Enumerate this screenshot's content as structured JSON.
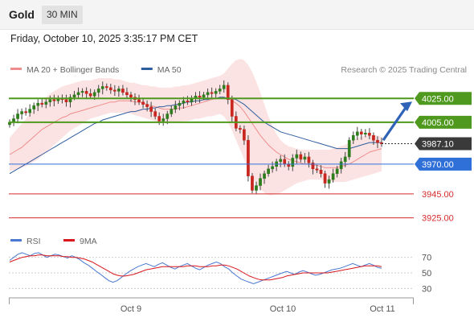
{
  "header": {
    "symbol": "Gold",
    "timeframe": "30 MIN"
  },
  "datetime": "Friday, October 10, 2025 3:35:17 PM CET",
  "credit": "Research © 2025 Trading Central",
  "chart_data": [
    {
      "type": "candlestick",
      "legend": [
        {
          "label": "MA 20 + Bollinger Bands",
          "color": "#f08c8c"
        },
        {
          "label": "MA 50",
          "color": "#2f5d9e"
        }
      ],
      "ylim": [
        3920,
        4040
      ],
      "x_tick_labels": [
        "Oct 9",
        "Oct 10",
        "Oct 11"
      ],
      "levels": [
        {
          "value": 4025,
          "label": "4025.00",
          "kind": "resistance",
          "color": "#4f9a1e"
        },
        {
          "value": 4005,
          "label": "4005.00",
          "kind": "resistance",
          "color": "#4f9a1e"
        },
        {
          "value": 3987.1,
          "label": "3987.10",
          "kind": "last price",
          "color": "#3a3a3a"
        },
        {
          "value": 3970,
          "label": "3970.00",
          "kind": "pivot",
          "color": "#2f6fd8"
        },
        {
          "value": 3945,
          "label": "3945.00",
          "kind": "support",
          "color": "#d62a2a"
        },
        {
          "value": 3925,
          "label": "3925.00",
          "kind": "support",
          "color": "#d62a2a"
        }
      ],
      "close": [
        4005,
        4008,
        4012,
        4014,
        4013,
        4016,
        4019,
        4021,
        4020,
        4022,
        4024,
        4023,
        4025,
        4024,
        4022,
        4026,
        4028,
        4030,
        4031,
        4029,
        4027,
        4030,
        4033,
        4035,
        4034,
        4032,
        4031,
        4033,
        4030,
        4028,
        4026,
        4024,
        4022,
        4020,
        4018,
        4014,
        4010,
        4006,
        4008,
        4012,
        4016,
        4019,
        4021,
        4023,
        4022,
        4025,
        4027,
        4026,
        4028,
        4030,
        4029,
        4031,
        4033,
        4036,
        4024,
        4010,
        4000,
        3999,
        3990,
        3960,
        3948,
        3952,
        3958,
        3962,
        3966,
        3968,
        3972,
        3974,
        3970,
        3968,
        3975,
        3978,
        3974,
        3976,
        3971,
        3966,
        3965,
        3962,
        3954,
        3957,
        3962,
        3966,
        3972,
        3976,
        3990,
        3994,
        3997,
        3995,
        3996,
        3994,
        3990,
        3988,
        3987
      ],
      "ma20": [
        3978,
        3980,
        3982,
        3984,
        3987,
        3990,
        3993,
        3996,
        3999,
        4001,
        4003,
        4005,
        4007,
        4009,
        4010,
        4012,
        4013,
        4014,
        4015,
        4016,
        4017,
        4018,
        4019,
        4020,
        4021,
        4022,
        4022,
        4023,
        4023,
        4023,
        4023,
        4022,
        4022,
        4021,
        4020,
        4019,
        4018,
        4017,
        4016,
        4016,
        4016,
        4016,
        4017,
        4017,
        4018,
        4019,
        4020,
        4021,
        4022,
        4023,
        4024,
        4025,
        4026,
        4026,
        4025,
        4023,
        4021,
        4018,
        4014,
        4009,
        4004,
        3999,
        3994,
        3990,
        3986,
        3983,
        3980,
        3978,
        3976,
        3974,
        3973,
        3972,
        3971,
        3970,
        3970,
        3969,
        3969,
        3968,
        3967,
        3967,
        3967,
        3967,
        3968,
        3969,
        3970,
        3972,
        3974,
        3976,
        3978,
        3980,
        3981,
        3982,
        3983
      ],
      "band_upper": [
        3992,
        3996,
        4000,
        4004,
        4008,
        4012,
        4016,
        4020,
        4023,
        4026,
        4029,
        4031,
        4033,
        4035,
        4036,
        4037,
        4038,
        4039,
        4040,
        4040,
        4040,
        4041,
        4042,
        4042,
        4042,
        4042,
        4041,
        4041,
        4040,
        4039,
        4038,
        4038,
        4037,
        4036,
        4036,
        4035,
        4035,
        4034,
        4034,
        4034,
        4034,
        4035,
        4035,
        4036,
        4036,
        4037,
        4038,
        4039,
        4040,
        4041,
        4042,
        4043,
        4044,
        4046,
        4050,
        4054,
        4057,
        4058,
        4057,
        4053,
        4047,
        4039,
        4030,
        4020,
        4010,
        4002,
        3995,
        3990,
        3987,
        3985,
        3984,
        3983,
        3982,
        3982,
        3982,
        3982,
        3982,
        3982,
        3982,
        3982,
        3983,
        3984,
        3985,
        3986,
        3988,
        3990,
        3992,
        3993,
        3994,
        3994,
        3994,
        3994,
        3993
      ],
      "band_lower": [
        3964,
        3965,
        3966,
        3967,
        3968,
        3970,
        3972,
        3974,
        3977,
        3980,
        3983,
        3986,
        3989,
        3992,
        3995,
        3998,
        4000,
        4002,
        4004,
        4006,
        4008,
        4009,
        4010,
        4011,
        4012,
        4013,
        4013,
        4013,
        4013,
        4013,
        4012,
        4011,
        4010,
        4009,
        4008,
        4007,
        4006,
        4005,
        4005,
        4005,
        4005,
        4005,
        4005,
        4006,
        4006,
        4007,
        4008,
        4008,
        4009,
        4010,
        4010,
        4011,
        4012,
        4010,
        4005,
        3998,
        3990,
        3982,
        3974,
        3966,
        3959,
        3953,
        3949,
        3946,
        3944,
        3944,
        3945,
        3946,
        3948,
        3950,
        3952,
        3954,
        3955,
        3956,
        3957,
        3957,
        3957,
        3957,
        3956,
        3956,
        3955,
        3955,
        3955,
        3955,
        3956,
        3957,
        3958,
        3959,
        3960,
        3961,
        3962,
        3963,
        3964
      ],
      "ma50": [
        3962,
        3964,
        3966,
        3968,
        3970,
        3972,
        3974,
        3976,
        3978,
        3980,
        3982,
        3984,
        3986,
        3988,
        3990,
        3992,
        3994,
        3996,
        3998,
        4000,
        4002,
        4004,
        4005,
        4007,
        4008,
        4009,
        4010,
        4011,
        4012,
        4013,
        4014,
        4014,
        4015,
        4016,
        4016,
        4017,
        4017,
        4018,
        4018,
        4019,
        4019,
        4020,
        4020,
        4021,
        4022,
        4022,
        4023,
        4023,
        4024,
        4024,
        4025,
        4025,
        4026,
        4026,
        4025,
        4025,
        4024,
        4022,
        4020,
        4017,
        4014,
        4011,
        4008,
        4005,
        4003,
        4001,
        3999,
        3997,
        3996,
        3995,
        3994,
        3993,
        3992,
        3991,
        3990,
        3989,
        3988,
        3987,
        3986,
        3985,
        3984,
        3983,
        3983,
        3983,
        3983,
        3984,
        3985,
        3986,
        3987,
        3988,
        3988,
        3988,
        3988
      ]
    },
    {
      "type": "line",
      "legend": [
        {
          "label": "RSI",
          "color": "#4a78d0"
        },
        {
          "label": "9MA",
          "color": "#d8161c"
        }
      ],
      "ylim": [
        20,
        80
      ],
      "y_ticks": [
        70,
        50,
        30
      ],
      "rsi": [
        66,
        70,
        74,
        76,
        74,
        72,
        75,
        76,
        73,
        70,
        72,
        74,
        73,
        71,
        69,
        72,
        70,
        67,
        63,
        60,
        56,
        52,
        48,
        44,
        40,
        38,
        40,
        44,
        48,
        52,
        55,
        58,
        60,
        62,
        60,
        58,
        61,
        63,
        60,
        57,
        55,
        58,
        60,
        62,
        59,
        56,
        54,
        57,
        60,
        62,
        64,
        62,
        58,
        55,
        50,
        46,
        42,
        40,
        38,
        36,
        38,
        40,
        42,
        44,
        46,
        48,
        50,
        52,
        50,
        48,
        51,
        53,
        51,
        49,
        47,
        48,
        50,
        52,
        54,
        55,
        56,
        58,
        60,
        62,
        60,
        58,
        60,
        62,
        60,
        57,
        56
      ],
      "rsi_ma": [
        64,
        66,
        68,
        70,
        71,
        72,
        72,
        73,
        73,
        72,
        72,
        72,
        72,
        71,
        71,
        70,
        70,
        69,
        68,
        66,
        64,
        61,
        58,
        55,
        52,
        49,
        47,
        46,
        46,
        47,
        48,
        50,
        52,
        54,
        55,
        56,
        57,
        58,
        58,
        58,
        58,
        58,
        58,
        59,
        59,
        59,
        58,
        58,
        58,
        59,
        59,
        60,
        60,
        59,
        57,
        55,
        52,
        49,
        46,
        44,
        42,
        41,
        41,
        41,
        42,
        43,
        44,
        46,
        47,
        48,
        49,
        50,
        50,
        50,
        50,
        50,
        50,
        50,
        51,
        52,
        53,
        54,
        55,
        56,
        57,
        58,
        59,
        59,
        59,
        59,
        58
      ]
    }
  ]
}
